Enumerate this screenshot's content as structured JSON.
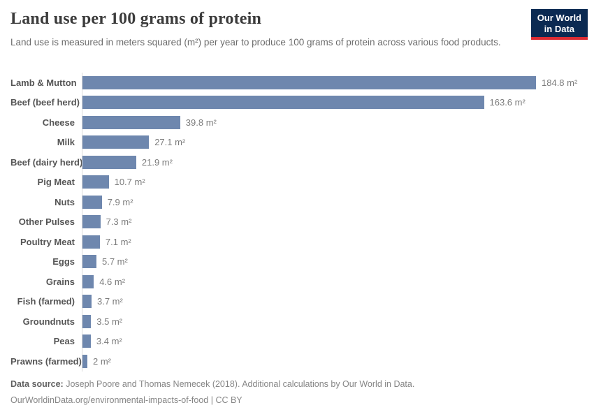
{
  "header": {
    "title": "Land use per 100 grams of protein",
    "subtitle": "Land use is measured in meters squared (m²) per year to produce 100 grams of protein across various food products.",
    "logo": {
      "line1": "Our World",
      "line2": "in Data"
    }
  },
  "chart_data": {
    "type": "bar",
    "orientation": "horizontal",
    "title": "Land use per 100 grams of protein",
    "xlabel": "",
    "ylabel": "",
    "unit": "m²",
    "xlim": [
      0,
      184.8
    ],
    "grid": false,
    "legend": "none",
    "bar_color": "#6e87ae",
    "categories": [
      "Lamb & Mutton",
      "Beef (beef herd)",
      "Cheese",
      "Milk",
      "Beef (dairy herd)",
      "Pig Meat",
      "Nuts",
      "Other Pulses",
      "Poultry Meat",
      "Eggs",
      "Grains",
      "Fish (farmed)",
      "Groundnuts",
      "Peas",
      "Prawns (farmed)"
    ],
    "values": [
      184.8,
      163.6,
      39.8,
      27.1,
      21.9,
      10.7,
      7.9,
      7.3,
      7.1,
      5.7,
      4.6,
      3.7,
      3.5,
      3.4,
      2
    ],
    "value_labels": [
      "184.8 m²",
      "163.6 m²",
      "39.8 m²",
      "27.1 m²",
      "21.9 m²",
      "10.7 m²",
      "7.9 m²",
      "7.3 m²",
      "7.1 m²",
      "5.7 m²",
      "4.6 m²",
      "3.7 m²",
      "3.5 m²",
      "3.4 m²",
      "2 m²"
    ]
  },
  "footer": {
    "source_label": "Data source:",
    "source_text": " Joseph Poore and Thomas Nemecek (2018). Additional calculations by Our World in Data.",
    "link": "OurWorldinData.org/environmental-impacts-of-food",
    "separator": " | ",
    "license": "CC BY"
  },
  "colors": {
    "bar": "#6e87ae",
    "axis_line": "#d9d9d9",
    "title_text": "#3b3b3b",
    "subtitle_text": "#6c6c6c",
    "category_label": "#555555",
    "value_label": "#7c7c7c",
    "footer_text": "#868686",
    "logo_background": "#0b2a52",
    "logo_accent": "#dc2c33"
  }
}
